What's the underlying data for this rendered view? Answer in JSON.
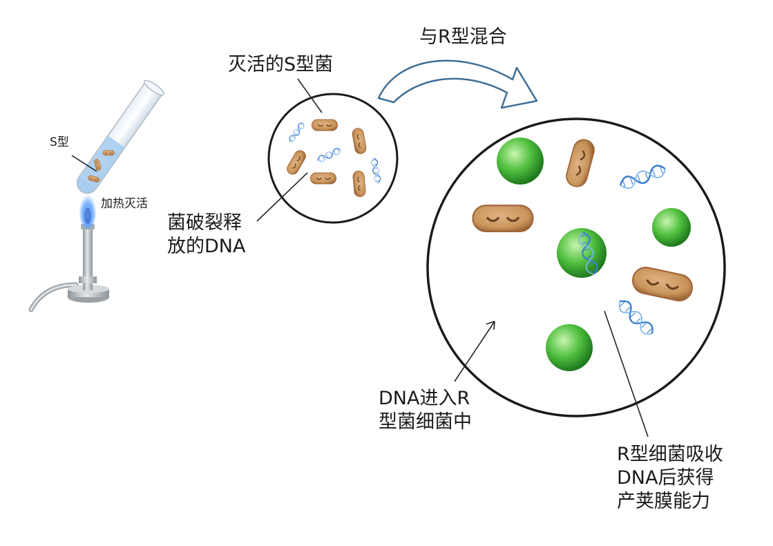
{
  "labels": {
    "s_type": "S型",
    "heat_kill": "加热灭活",
    "heat_killed_s": "灭活的S型菌",
    "released_dna": [
      "菌破裂释",
      "放的DNA"
    ],
    "mix_with_r": "与R型混合",
    "dna_enters": [
      "DNA进入R",
      "型菌细菌中"
    ],
    "r_absorbs": [
      "R型细菌吸收",
      "DNA后获得",
      "产荚膜能力"
    ]
  },
  "colors": {
    "s_bacterium_fill": "#c9955c",
    "s_bacterium_edge": "#a0663a",
    "r_bacterium_fill": "#4fbf3e",
    "dna_strand": "#3a7fd0",
    "arrow_outline": "#3f6e95",
    "tube_liquid": "#a9cdf0",
    "burner_metal": "#b8bec4",
    "flame": "#6aa8ff"
  },
  "icons": [
    "test-tube-icon",
    "bunsen-burner-icon",
    "flame-icon",
    "s-bacterium-icon",
    "r-bacterium-icon",
    "dna-strand-icon",
    "curved-arrow-icon"
  ]
}
